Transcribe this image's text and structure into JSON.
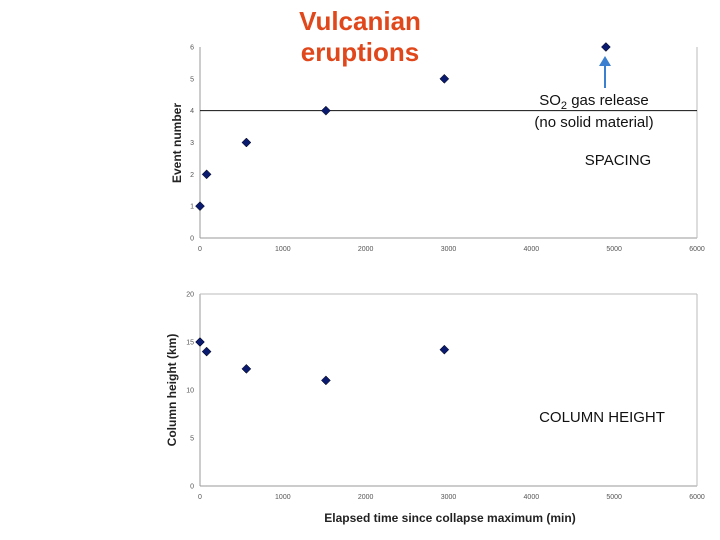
{
  "title": "Vulcanian eruptions",
  "annotations": {
    "so2_main": "SO",
    "so2_sub": "2",
    "so2_rest": " gas release",
    "so2_line2": "(no solid material)",
    "spacing": "SPACING",
    "column_height": "COLUMN HEIGHT"
  },
  "colors": {
    "title": "#e0471b",
    "marker": "#0a1a6e",
    "arrow": "#3a7fd0"
  },
  "chart_data": [
    {
      "type": "scatter",
      "xlabel": "",
      "ylabel": "Event number",
      "xlim": [
        0,
        6000
      ],
      "ylim": [
        0,
        6
      ],
      "xticks": [
        "0",
        "1000",
        "2000",
        "3000",
        "4000",
        "5000",
        "6000"
      ],
      "yticks": [
        "0",
        "1",
        "2",
        "3",
        "4",
        "5",
        "6"
      ],
      "x": [
        0,
        80,
        560,
        1520,
        2950,
        4900
      ],
      "y": [
        1,
        2,
        3,
        4,
        5,
        6
      ],
      "reference_line_y": 4,
      "grid": false
    },
    {
      "type": "scatter",
      "xlabel": "Elapsed time since collapse maximum (min)",
      "ylabel": "Column height (km)",
      "xlim": [
        0,
        6000
      ],
      "ylim": [
        0,
        20
      ],
      "xticks": [
        "0",
        "1000",
        "2000",
        "3000",
        "4000",
        "5000",
        "6000"
      ],
      "yticks": [
        "0",
        "5",
        "10",
        "15",
        "20"
      ],
      "x": [
        0,
        80,
        560,
        1520,
        2950
      ],
      "y": [
        15,
        14,
        12.2,
        11,
        14.2
      ],
      "grid": false
    }
  ]
}
